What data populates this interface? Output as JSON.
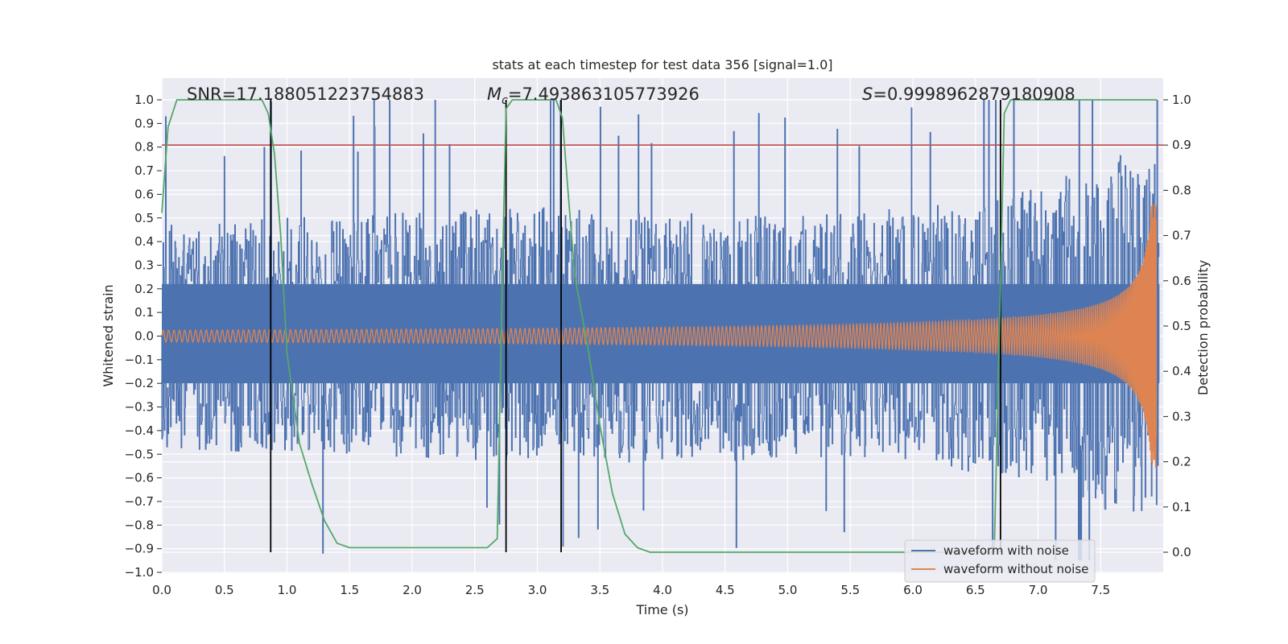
{
  "chart_data": {
    "type": "line",
    "title": "stats at each timestep for test data 356 [signal=1.0]",
    "xlabel": "Time (s)",
    "ylabel": "Whitened strain",
    "ylabel_right": "Detection probability",
    "xlim": [
      0.0,
      8.0
    ],
    "ylim": [
      -1.0,
      1.0
    ],
    "ylim_right": [
      0.0,
      1.0
    ],
    "x_ticks": [
      "0.0",
      "0.5",
      "1.0",
      "1.5",
      "2.0",
      "2.5",
      "3.0",
      "3.5",
      "4.0",
      "4.5",
      "5.0",
      "5.5",
      "6.0",
      "6.5",
      "7.0",
      "7.5"
    ],
    "y_ticks": [
      "1.0",
      "0.9",
      "0.8",
      "0.7",
      "0.6",
      "0.5",
      "0.4",
      "0.3",
      "0.2",
      "0.1",
      "0.0",
      "−0.1",
      "−0.2",
      "−0.3",
      "−0.4",
      "−0.5",
      "−0.6",
      "−0.7",
      "−0.8",
      "−0.9",
      "−1.0"
    ],
    "y_ticks_right": [
      "1.0",
      "0.9",
      "0.8",
      "0.7",
      "0.6",
      "0.5",
      "0.4",
      "0.3",
      "0.2",
      "0.1",
      "0.0"
    ],
    "grid": true,
    "legend_position": "bottom-right",
    "annotations": {
      "snr": "SNR=17.188051223754883",
      "mc_symbol": "M",
      "mc_subscript": "c",
      "mc_value": "=7.493863105773926",
      "s_symbol": "S",
      "s_value": "=0.9998962879180908"
    },
    "series": [
      {
        "name": "waveform with noise",
        "color": "#4c72b0",
        "envelope_pos": [
          [
            0.0,
            0.45
          ],
          [
            1.0,
            0.48
          ],
          [
            2.0,
            0.5
          ],
          [
            3.0,
            0.52
          ],
          [
            4.0,
            0.5
          ],
          [
            5.0,
            0.48
          ],
          [
            6.0,
            0.52
          ],
          [
            7.0,
            0.6
          ],
          [
            7.5,
            0.75
          ],
          [
            7.95,
            0.7
          ]
        ],
        "envelope_neg": [
          [
            0.0,
            -0.45
          ],
          [
            1.0,
            -0.48
          ],
          [
            2.0,
            -0.5
          ],
          [
            3.0,
            -0.5
          ],
          [
            4.0,
            -0.52
          ],
          [
            5.0,
            -0.5
          ],
          [
            6.0,
            -0.52
          ],
          [
            7.0,
            -0.58
          ],
          [
            7.5,
            -0.72
          ],
          [
            7.95,
            -0.7
          ]
        ]
      },
      {
        "name": "waveform without noise",
        "color": "#dd8452",
        "chirp": {
          "t_start": 0.0,
          "t_merge": 7.95,
          "amp_start": 0.025,
          "amp_peak": 0.56,
          "cycles_first_second": 23
        }
      },
      {
        "name": "detection probability",
        "color": "#55a868",
        "axis": "right",
        "x": [
          0.0,
          0.05,
          0.12,
          0.3,
          0.5,
          0.7,
          0.8,
          0.85,
          0.9,
          0.95,
          1.0,
          1.1,
          1.2,
          1.3,
          1.4,
          1.5,
          2.6,
          2.68,
          2.72,
          2.75,
          2.8,
          3.15,
          3.2,
          3.25,
          3.3,
          3.4,
          3.5,
          3.6,
          3.7,
          3.8,
          3.9,
          6.65,
          6.7,
          6.73,
          6.78,
          7.95
        ],
        "y": [
          0.75,
          0.94,
          1.0,
          1.0,
          1.0,
          1.0,
          1.0,
          0.97,
          0.88,
          0.7,
          0.44,
          0.24,
          0.15,
          0.07,
          0.02,
          0.01,
          0.01,
          0.03,
          0.6,
          0.98,
          1.0,
          1.0,
          0.96,
          0.78,
          0.61,
          0.46,
          0.28,
          0.13,
          0.04,
          0.01,
          0.0,
          0.0,
          0.6,
          0.97,
          1.0,
          1.0
        ]
      },
      {
        "name": "threshold",
        "color": "#c44e52",
        "axis": "right",
        "y_const": 0.9
      }
    ],
    "event_markers_x": [
      0.87,
      2.75,
      3.19,
      6.7
    ]
  }
}
